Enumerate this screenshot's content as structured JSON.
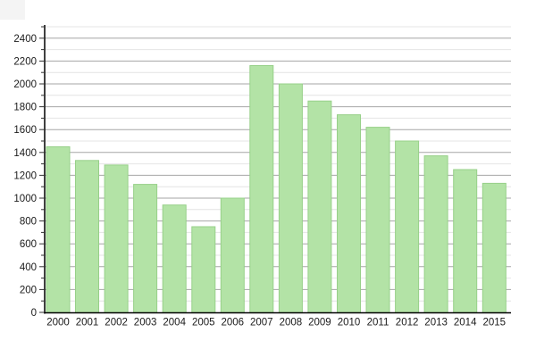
{
  "chart_data": {
    "type": "bar",
    "title": "",
    "xlabel": "",
    "ylabel": "",
    "categories": [
      "2000",
      "2001",
      "2002",
      "2003",
      "2004",
      "2005",
      "2006",
      "2007",
      "2008",
      "2009",
      "2010",
      "2011",
      "2012",
      "2013",
      "2014",
      "2015"
    ],
    "values": [
      1450,
      1330,
      1290,
      1120,
      940,
      750,
      1000,
      2160,
      2000,
      1850,
      1730,
      1620,
      1500,
      1370,
      1250,
      1130
    ],
    "ylim": [
      0,
      2500
    ],
    "ytick_major_interval": 200,
    "ytick_minor_interval": 100,
    "ytick_labels": [
      "0",
      "200",
      "400",
      "600",
      "800",
      "1000",
      "1200",
      "1400",
      "1600",
      "1800",
      "2000",
      "2200",
      "2400"
    ],
    "grid": true,
    "legend": false
  },
  "colors": {
    "bar_fill": "#b3e3a6",
    "bar_border": "#97d089",
    "grid_major": "#a6a6a6",
    "grid_minor": "#e4e4e4",
    "axis": "#000000",
    "tick": "#333333",
    "label_text": "#1a1a1a",
    "background": "#ffffff",
    "corner_artifact": "#f4f4f4"
  }
}
